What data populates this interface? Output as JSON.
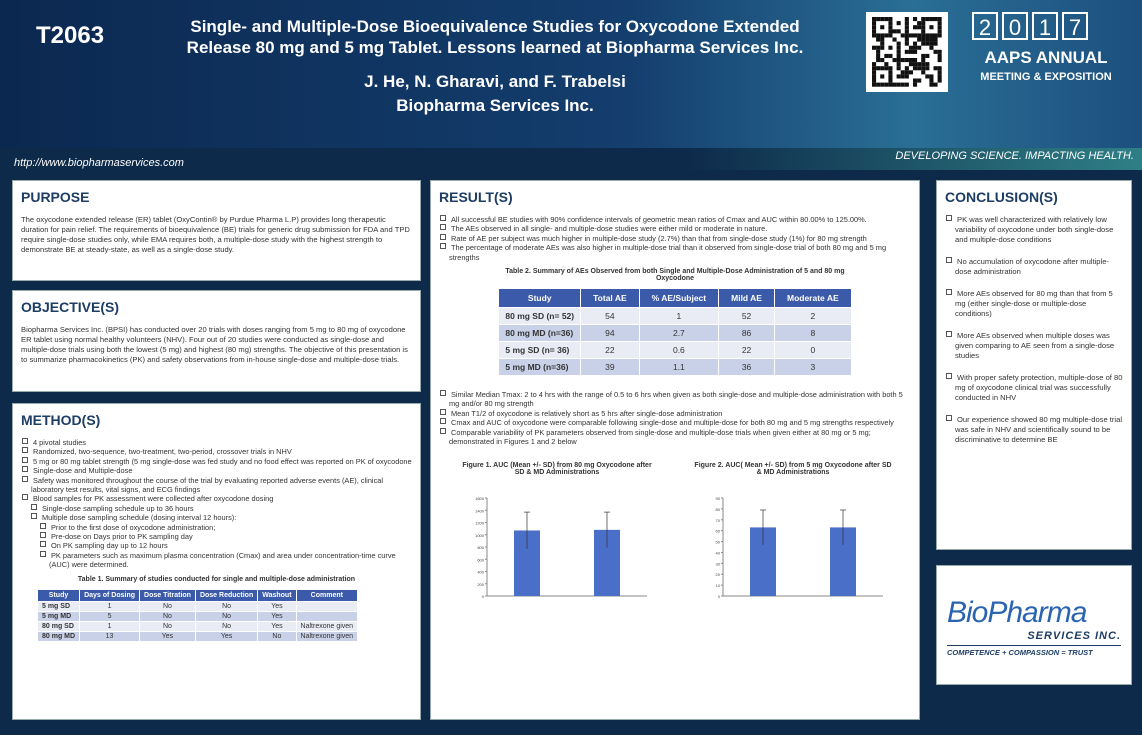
{
  "header": {
    "id": "T2063",
    "title": [
      "Single- and Multiple-Dose Bioequivalence Studies for Oxycodone Extended",
      "Release 80 mg and 5 mg Tablet.  Lessons learned at Biopharma Services Inc."
    ],
    "authors": "J. He, N. Gharavi, and F. Trabelsi",
    "affiliation": "Biopharma Services Inc.",
    "url": "http://www.biopharmaservices.com",
    "tagline": "DEVELOPING SCIENCE. IMPACTING HEALTH.",
    "year_digits": [
      "2",
      "0",
      "1",
      "7"
    ],
    "conference": [
      "AAPS ANNUAL",
      "MEETING & EXPOSITION"
    ]
  },
  "purpose": {
    "heading": "PURPOSE",
    "text": "The oxycodone extended release (ER) tablet (OxyContin® by Purdue Pharma L.P) provides long therapeutic duration for pain relief. The requirements of bioequivalence (BE) trials for generic drug submission for FDA and TPD require single-dose studies only, while EMA requires both, a multiple-dose study with the highest strength to demonstrate BE at steady-state, as well as a single-dose study."
  },
  "objective": {
    "heading": "OBJECTIVE(S)",
    "text": "Biopharma Services Inc. (BPSI) has conducted over 20 trials with doses ranging from 5 mg to 80 mg of oxycodone ER tablet using normal healthy volunteers (NHV). Four out of 20 studies were conducted as single-dose and multiple-dose trials using both the lowest (5 mg) and highest (80 mg) strengths. The objective of this presentation is to summarize pharmacokinetics (PK) and safety observations from in-house single-dose and multiple-dose trials."
  },
  "method": {
    "heading": "METHOD(S)",
    "bullets": [
      "4 pivotal studies",
      "Randomized, two-sequence, two-treatment, two-period, crossover trials in NHV",
      "5 mg or 80 mg tablet strength (5 mg single-dose was fed study and no food effect was reported on PK of oxycodone",
      "Single-dose and Multiple-dose",
      "Safety was monitored throughout the course of the trial by evaluating reported adverse events (AE), clinical laboratory test results, vital signs, and ECG findings",
      {
        "text": "Blood samples for PK assessment were collected after oxycodone dosing",
        "items": [
          "Single-dose sampling schedule up to 36 hours",
          {
            "text": "Multiple dose sampling schedule (dosing interval 12 hours):",
            "items": [
              "Prior to the first dose of oxycodone administration;",
              "Pre-dose on Days prior to PK sampling day",
              "On PK sampling day up to 12 hours",
              "PK parameters such as maximum plasma concentration (Cmax) and area under concentration-time curve (AUC) were determined."
            ]
          }
        ]
      }
    ],
    "table": {
      "caption": "Table 1. Summary of studies conducted for single and multiple-dose administration",
      "header": [
        "Study",
        "Days of Dosing",
        "Dose Titration",
        "Dose Reduction",
        "Washout",
        "Comment"
      ],
      "rows": [
        [
          "5 mg SD",
          1,
          "No",
          "No",
          "Yes",
          null
        ],
        [
          "5 mg MD",
          5,
          "No",
          "No",
          "Yes",
          null
        ],
        [
          "80 mg SD",
          1,
          "No",
          "No",
          "Yes",
          "Naltrexone given"
        ],
        [
          "80 mg MD",
          13,
          "Yes",
          "Yes",
          "No",
          "Naltrexone given"
        ]
      ]
    }
  },
  "results": {
    "heading": "RESULT(S)",
    "bullets": [
      "All successful BE studies with 90% confidence intervals of geometric mean ratios of Cmax and AUC within 80.00% to 125.00%.",
      "The AEs observed in all single- and multiple-dose studies were either mild or moderate in nature.",
      "Rate of AE per subject was much higher in multiple-dose study (2.7%) than that from single-dose study (1%) for 80 mg strength",
      "The percentage of moderate AEs was also higher in multiple-dose trial than it observed from single-dose trial of both 80 mg and 5 mg strengths"
    ],
    "table": {
      "caption": "Table 2. Summary of AEs Observed from both Single and Multiple-Dose Administration of 5 and 80 mg Oxycodone",
      "header": [
        "Study",
        "Total AE",
        "% AE/Subject",
        "Mild AE",
        "Moderate AE"
      ],
      "rows": [
        [
          "80 mg SD (n= 52)",
          54,
          1,
          52,
          2
        ],
        [
          "80 mg MD (n=36)",
          94,
          2.7,
          86,
          8
        ],
        [
          "5 mg SD (n= 36)",
          22,
          0.6,
          22,
          0
        ],
        [
          "5 mg MD (n=36)",
          39,
          1.1,
          36,
          3
        ]
      ]
    },
    "bullets2": [
      "Similar Median Tmax: 2 to 4 hrs with the range of 0.5 to 6 hrs when given as both single-dose and multiple-dose administration with both 5 mg and/or 80 mg strength",
      "Mean T1/2 of oxycodone is relatively short as 5 hrs after single-dose administration",
      "Cmax and AUC of oxycodone were comparable following single-dose and multiple-dose for both 80 mg and 5 mg strengths respectively",
      "Comparable variability of PK parameters observed from single-dose and multiple-dose trials when given either at 80 mg or 5 mg; demonstrated in Figures 1 and 2 below"
    ],
    "figures": [
      {
        "title": "Figure 1. AUC (Mean +/- SD) from 80 mg Oxycodone after SD & MD Administrations",
        "color": "#4a6fc8",
        "ylim": [
          0,
          1600
        ],
        "yticks": [
          0,
          200,
          400,
          600,
          800,
          1000,
          1200,
          1400,
          1600
        ],
        "values": [
          1070,
          1080
        ],
        "errors": [
          300,
          290
        ]
      },
      {
        "title": "Figure 2. AUC( Mean +/- SD) from 5 mg Oxycodone after SD & MD Administrations",
        "color": "#4a6fc8",
        "ylim": [
          0,
          90
        ],
        "yticks": [
          0,
          10,
          20,
          30,
          40,
          50,
          60,
          70,
          80,
          90
        ],
        "values": [
          63,
          63
        ],
        "errors": [
          16,
          16
        ]
      }
    ]
  },
  "conclusion": {
    "heading": "CONCLUSION(S)",
    "bullets": [
      "PK was well characterized with relatively low variability of oxycodone under both single-dose and multiple-dose conditions",
      "No accumulation of oxycodone after multiple-dose administration",
      "More AEs observed for 80 mg than that from 5 mg (either single-dose or multiple-dose conditions)",
      "More AEs observed when multiple doses was given comparing to AE seen from a single-dose studies",
      "With proper safety protection, multiple-dose of 80 mg of oxycodone clinical trial was successfully conducted in NHV",
      "Our experience showed 80 mg multiple-dose trial was safe in NHV and scientifically sound to be discriminative to determine BE"
    ]
  },
  "logo": {
    "name": "BioPharma",
    "sub": "SERVICES INC.",
    "motto": "COMPETENCE + COMPASSION = TRUST"
  }
}
